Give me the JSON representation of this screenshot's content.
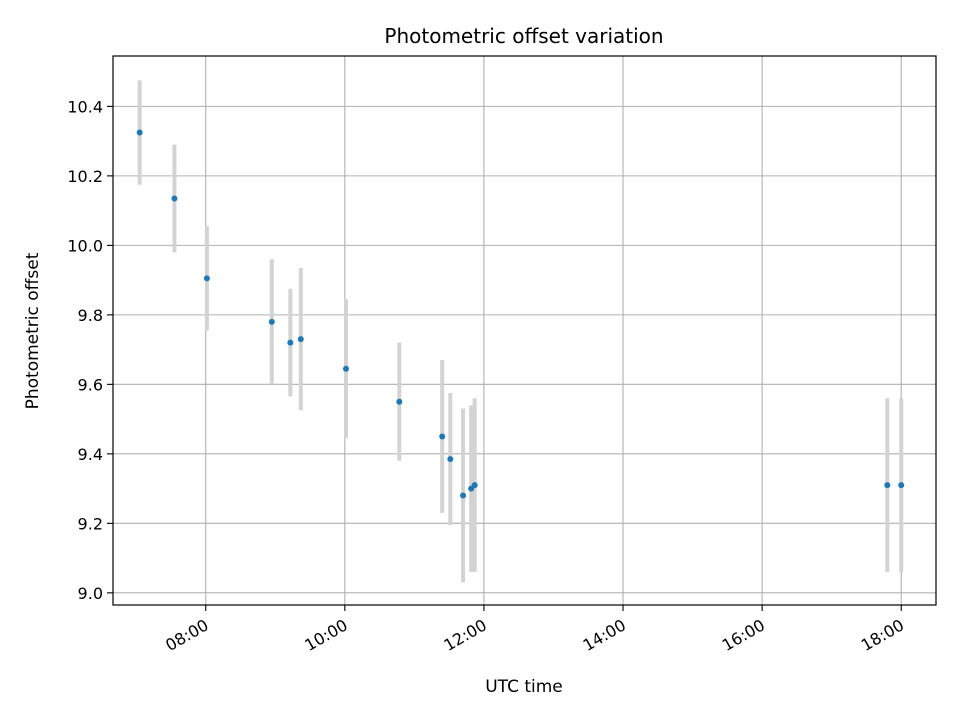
{
  "chart_data": {
    "type": "scatter",
    "title": "Photometric offset variation",
    "xlabel": "UTC time",
    "ylabel": "Photometric offset",
    "x_axis_type": "time",
    "xlim": [
      "06:40",
      "18:30"
    ],
    "ylim": [
      8.965,
      10.545
    ],
    "x_ticks": [
      "08:00",
      "10:00",
      "12:00",
      "14:00",
      "16:00",
      "18:00"
    ],
    "y_ticks": [
      9.0,
      9.2,
      9.4,
      9.6,
      9.8,
      10.0,
      10.2,
      10.4
    ],
    "y_tick_labels": [
      "9.0",
      "9.2",
      "9.4",
      "9.6",
      "9.8",
      "10.0",
      "10.2",
      "10.4"
    ],
    "grid": true,
    "legend": "none",
    "series": [
      {
        "x": [
          "07:03",
          "07:33",
          "08:01",
          "08:57",
          "09:13",
          "09:22",
          "10:01",
          "10:47",
          "11:24",
          "11:31",
          "11:42",
          "11:49",
          "11:52",
          "17:48",
          "18:00"
        ],
        "y": [
          10.325,
          10.135,
          9.905,
          9.78,
          9.72,
          9.73,
          9.645,
          9.55,
          9.45,
          9.385,
          9.28,
          9.3,
          9.31,
          9.31,
          9.31
        ],
        "yerr": [
          0.15,
          0.155,
          0.15,
          0.18,
          0.155,
          0.205,
          0.2,
          0.17,
          0.22,
          0.19,
          0.25,
          0.24,
          0.25,
          0.25,
          0.25
        ]
      }
    ],
    "colors": {
      "marker": "#1f77b4",
      "errorbar": "#d3d3d3",
      "grid": "#b0b0b0",
      "axes": "#000000"
    }
  }
}
